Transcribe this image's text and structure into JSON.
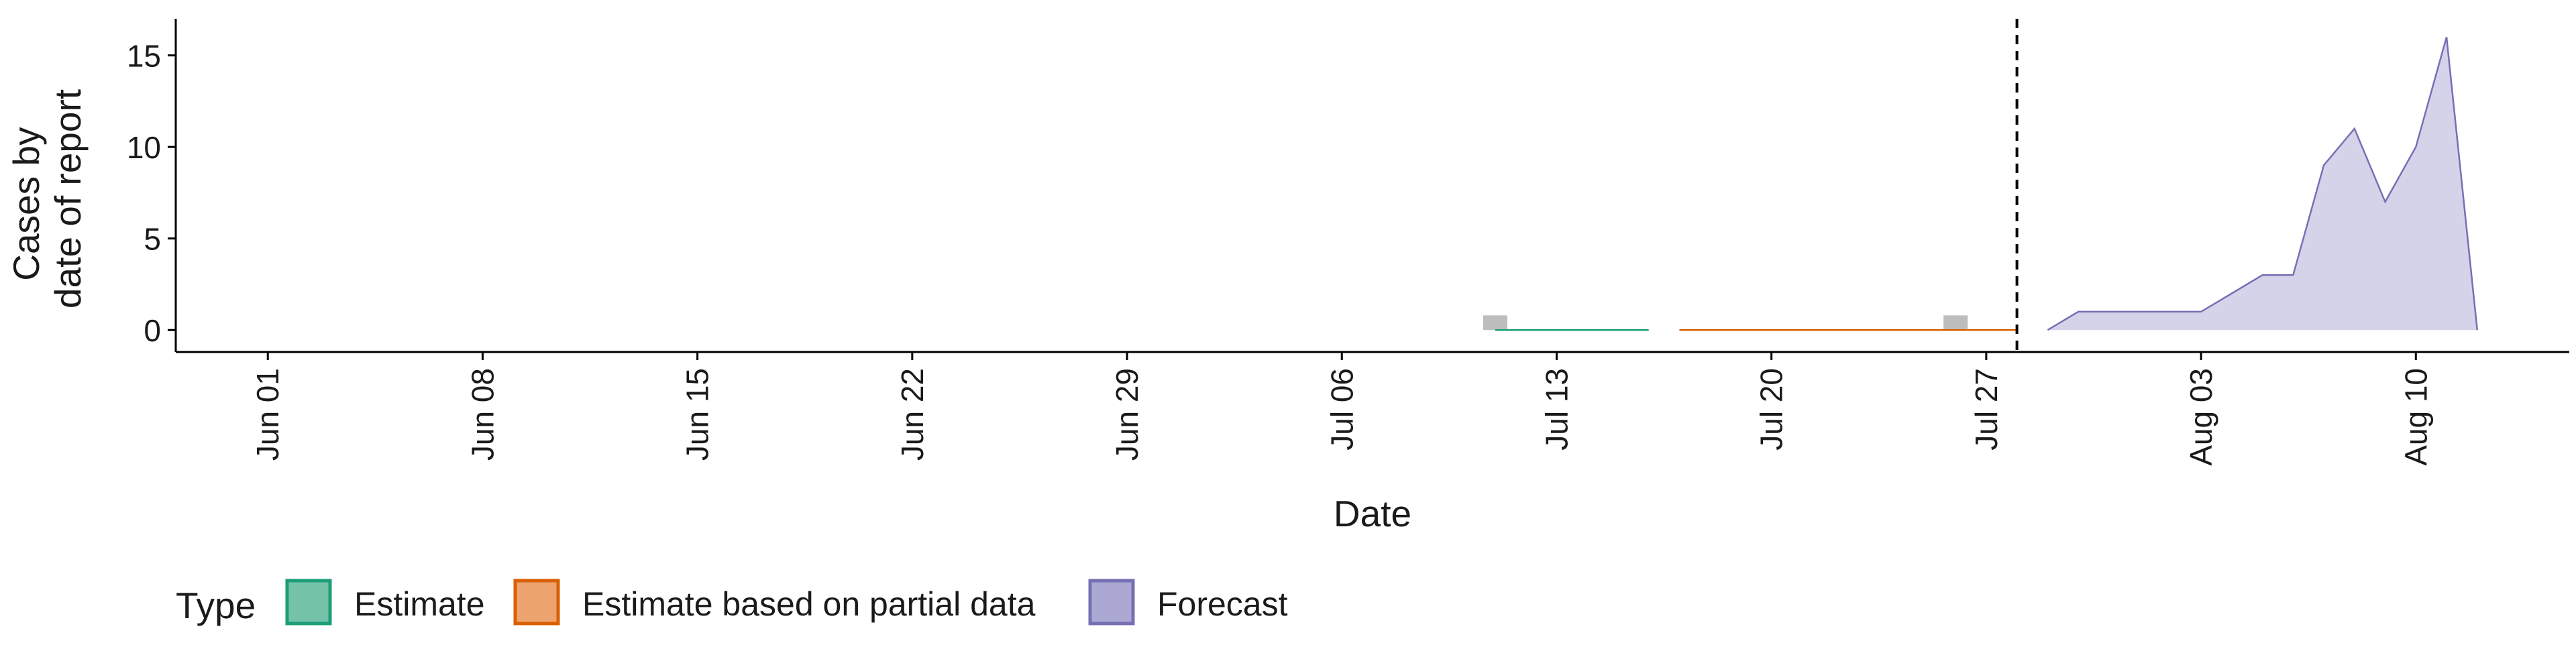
{
  "chart_data": {
    "type": "area",
    "xlabel": "Date",
    "ylabel_lines": [
      "Cases by",
      "date of report"
    ],
    "ylim": [
      -1.2,
      17
    ],
    "xlim": [
      "2020-05-29",
      "2020-08-15"
    ],
    "y_ticks": [
      0,
      5,
      10,
      15
    ],
    "x_ticks": [
      {
        "date": "2020-06-01",
        "label": "Jun 01"
      },
      {
        "date": "2020-06-08",
        "label": "Jun 08"
      },
      {
        "date": "2020-06-15",
        "label": "Jun 15"
      },
      {
        "date": "2020-06-22",
        "label": "Jun 22"
      },
      {
        "date": "2020-06-29",
        "label": "Jun 29"
      },
      {
        "date": "2020-07-06",
        "label": "Jul 06"
      },
      {
        "date": "2020-07-13",
        "label": "Jul 13"
      },
      {
        "date": "2020-07-20",
        "label": "Jul 20"
      },
      {
        "date": "2020-07-27",
        "label": "Jul 27"
      },
      {
        "date": "2020-08-03",
        "label": "Aug 03"
      },
      {
        "date": "2020-08-10",
        "label": "Aug 10"
      }
    ],
    "forecast_start": "2020-07-28",
    "observed_bars": [
      {
        "date": "2020-07-11",
        "value": 0.8
      },
      {
        "date": "2020-07-26",
        "value": 0.8
      }
    ],
    "grid": false,
    "legend_position": "bottom",
    "legend_title": "Type",
    "series": [
      {
        "name": "Estimate",
        "color": "#1b9e77",
        "fill": "#74c3a8",
        "x": [
          "2020-07-11",
          "2020-07-12",
          "2020-07-13",
          "2020-07-14",
          "2020-07-15",
          "2020-07-16"
        ],
        "y": [
          0,
          0,
          0,
          0,
          0,
          0
        ]
      },
      {
        "name": "Estimate based on partial data",
        "color": "#d95f02",
        "fill": "#eda36d",
        "x": [
          "2020-07-17",
          "2020-07-19",
          "2020-07-21",
          "2020-07-23",
          "2020-07-25",
          "2020-07-27",
          "2020-07-28"
        ],
        "y": [
          0,
          0,
          0,
          0,
          0,
          0,
          0
        ]
      },
      {
        "name": "Forecast",
        "color": "#7570b3",
        "fill": "#aba8d4",
        "x": [
          "2020-07-29",
          "2020-07-30",
          "2020-07-31",
          "2020-08-01",
          "2020-08-02",
          "2020-08-03",
          "2020-08-04",
          "2020-08-05",
          "2020-08-06",
          "2020-08-07",
          "2020-08-08",
          "2020-08-09",
          "2020-08-10",
          "2020-08-11",
          "2020-08-12"
        ],
        "y": [
          0,
          1,
          1,
          1,
          1,
          1,
          2,
          3,
          3,
          9,
          11,
          7,
          10,
          16,
          0
        ]
      }
    ]
  }
}
